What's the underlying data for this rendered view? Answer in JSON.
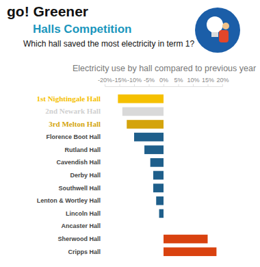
{
  "chart_data": {
    "type": "bar",
    "orientation": "horizontal",
    "title": "go! Greener",
    "subtitle": "Halls Competition",
    "annotations": [
      "Which hall saved the most electricity in term 1?"
    ],
    "xlabel": "Electricity use by hall compared to previous year",
    "categories": [
      "1st Nightingale Hall",
      "2nd Newark Hall",
      "3rd Melton Hall",
      "Florence Boot Hall",
      "Rutland Hall",
      "Cavendish Hall",
      "Derby Hall",
      "Southwell Hall",
      "Lenton & Wortley Hall",
      "Lincoln Hall",
      "Ancaster Hall",
      "Sherwood Hall",
      "Cripps Hall"
    ],
    "values": [
      -15.5,
      -14,
      -12.5,
      -10,
      -6.5,
      -4.5,
      -3.5,
      -3.5,
      -2.5,
      -1.5,
      0,
      15,
      18
    ],
    "colors": [
      "#f5c000",
      "#d9d9d9",
      "#d4a40c",
      "#1f5f8b",
      "#1f5f8b",
      "#1f5f8b",
      "#1f5f8b",
      "#1f5f8b",
      "#1f5f8b",
      "#1f5f8b",
      "#1f5f8b",
      "#d9420f",
      "#d9420f"
    ],
    "xlim": [
      -20,
      20
    ],
    "xticks": [
      {
        "value": -20,
        "label": "-20%"
      },
      {
        "value": -15,
        "label": "-15%"
      },
      {
        "value": -10,
        "label": "-10%"
      },
      {
        "value": -5,
        "label": "-5%"
      },
      {
        "value": 0,
        "label": "0%"
      },
      {
        "value": 5,
        "label": "5%"
      },
      {
        "value": 10,
        "label": "10%"
      },
      {
        "value": 15,
        "label": "15%"
      },
      {
        "value": 20,
        "label": "20%"
      }
    ],
    "grid": false
  }
}
